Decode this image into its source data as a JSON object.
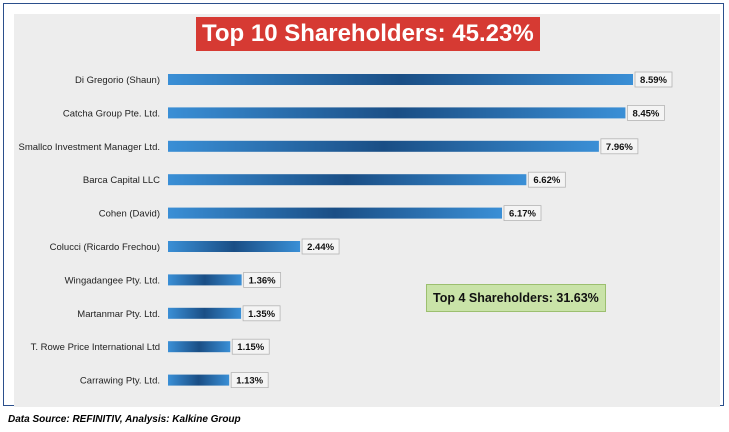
{
  "title": "Top 10 Shareholders: 45.23%",
  "callout": "Top 4 Shareholders: 31.63%",
  "source": "Data Source: REFINITIV, Analysis: Kalkine Group",
  "colors": {
    "bar_dark": "#1a4e85",
    "bar_light": "#3a8fd6",
    "title_bg": "#d63a33",
    "callout_bg": "#c9e3a8"
  },
  "chart_data": {
    "type": "bar",
    "orientation": "horizontal",
    "categories": [
      "Di Gregorio (Shaun)",
      "Catcha Group Pte. Ltd.",
      "Smallco Investment Manager Ltd.",
      "Barca Capital LLC",
      "Cohen (David)",
      "Colucci (Ricardo Frechou)",
      "Wingadangee Pty. Ltd.",
      "Martanmar Pty. Ltd.",
      "T. Rowe Price International Ltd",
      "Carrawing Pty. Ltd."
    ],
    "values": [
      8.59,
      8.45,
      7.96,
      6.62,
      6.17,
      2.44,
      1.36,
      1.35,
      1.15,
      1.13
    ],
    "value_labels": [
      "8.59%",
      "8.45%",
      "7.96%",
      "6.62%",
      "6.17%",
      "2.44%",
      "1.36%",
      "1.35%",
      "1.15%",
      "1.13%"
    ],
    "title": "Top 10 Shareholders: 45.23%",
    "xlim": [
      0,
      8.59
    ],
    "grid": false,
    "legend": "none"
  }
}
